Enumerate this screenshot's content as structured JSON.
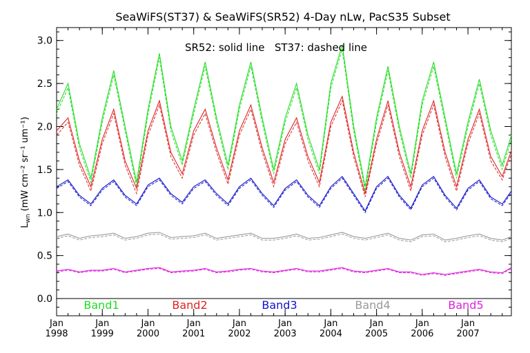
{
  "chart_data": {
    "type": "line",
    "title": "SeaWiFS(ST37) & SeaWiFS(SR52) 4-Day nLw, PacS35 Subset",
    "annotation": "SR52: solid line   ST37: dashed line",
    "ylabel_main": "L",
    "ylabel_sub": "wn",
    "ylabel_units": "(mW cm⁻² sr⁻¹ um⁻¹)",
    "ylim": [
      -0.2,
      3.15
    ],
    "xlim": [
      1998.0,
      2007.95
    ],
    "y_ticks": [
      0.0,
      0.5,
      1.0,
      1.5,
      2.0,
      2.5,
      3.0
    ],
    "y_tick_labels": [
      "0.0",
      "0.5",
      "1.0",
      "1.5",
      "2.0",
      "2.5",
      "3.0"
    ],
    "x_tick_month": "Jan",
    "x_ticks": [
      1998,
      1999,
      2000,
      2001,
      2002,
      2003,
      2004,
      2005,
      2006,
      2007
    ],
    "x_tick_labels": [
      "1998",
      "1999",
      "2000",
      "2001",
      "2002",
      "2003",
      "2004",
      "2005",
      "2006",
      "2007"
    ],
    "legend_placement": "bottom",
    "series": [
      {
        "name": "Band1",
        "color": "#22dd22",
        "x": [
          1998.0,
          1998.25,
          1998.5,
          1998.75,
          1999.0,
          1999.25,
          1999.5,
          1999.75,
          2000.0,
          2000.25,
          2000.5,
          2000.75,
          2001.0,
          2001.25,
          2001.5,
          2001.75,
          2002.0,
          2002.25,
          2002.5,
          2002.75,
          2003.0,
          2003.25,
          2003.5,
          2003.75,
          2004.0,
          2004.25,
          2004.5,
          2004.75,
          2005.0,
          2005.25,
          2005.5,
          2005.75,
          2006.0,
          2006.25,
          2006.5,
          2006.75,
          2007.0,
          2007.25,
          2007.5,
          2007.75,
          2007.95
        ],
        "values": [
          2.2,
          2.5,
          1.8,
          1.4,
          2.1,
          2.65,
          2.0,
          1.35,
          2.2,
          2.85,
          2.0,
          1.6,
          2.2,
          2.75,
          2.1,
          1.55,
          2.25,
          2.75,
          2.1,
          1.5,
          2.1,
          2.5,
          1.9,
          1.5,
          2.5,
          2.95,
          2.0,
          1.3,
          2.1,
          2.7,
          2.0,
          1.45,
          2.3,
          2.75,
          2.1,
          1.45,
          2.05,
          2.55,
          1.95,
          1.55,
          1.9
        ],
        "ST37_values": [
          2.15,
          2.45,
          1.75,
          1.35,
          2.05,
          2.6,
          1.95,
          1.3,
          2.15,
          2.8,
          1.95,
          1.55,
          2.15,
          2.7,
          2.05,
          1.5,
          2.2,
          2.7,
          2.05,
          1.45,
          2.05,
          2.45,
          1.85,
          1.45,
          2.45,
          2.9,
          1.95,
          1.25,
          2.05,
          2.65,
          1.95,
          1.4,
          2.25,
          2.7,
          2.05,
          1.4,
          2.0,
          2.5,
          1.9,
          1.5,
          1.85
        ]
      },
      {
        "name": "Band2",
        "color": "#dd2222",
        "x": [
          1998.0,
          1998.25,
          1998.5,
          1998.75,
          1999.0,
          1999.25,
          1999.5,
          1999.75,
          2000.0,
          2000.25,
          2000.5,
          2000.75,
          2001.0,
          2001.25,
          2001.5,
          2001.75,
          2002.0,
          2002.25,
          2002.5,
          2002.75,
          2003.0,
          2003.25,
          2003.5,
          2003.75,
          2004.0,
          2004.25,
          2004.5,
          2004.75,
          2005.0,
          2005.25,
          2005.5,
          2005.75,
          2006.0,
          2006.25,
          2006.5,
          2006.75,
          2007.0,
          2007.25,
          2007.5,
          2007.75,
          2007.95
        ],
        "values": [
          1.95,
          2.1,
          1.6,
          1.3,
          1.85,
          2.2,
          1.6,
          1.28,
          1.95,
          2.3,
          1.7,
          1.45,
          1.95,
          2.2,
          1.75,
          1.38,
          1.95,
          2.25,
          1.75,
          1.35,
          1.85,
          2.1,
          1.65,
          1.35,
          2.05,
          2.35,
          1.7,
          1.22,
          1.85,
          2.3,
          1.7,
          1.3,
          1.95,
          2.3,
          1.7,
          1.3,
          1.85,
          2.2,
          1.65,
          1.42,
          1.72
        ],
        "ST37_values": [
          1.9,
          2.05,
          1.55,
          1.25,
          1.8,
          2.15,
          1.55,
          1.22,
          1.9,
          2.25,
          1.65,
          1.4,
          1.9,
          2.15,
          1.7,
          1.33,
          1.9,
          2.2,
          1.7,
          1.3,
          1.8,
          2.05,
          1.6,
          1.3,
          2.0,
          2.3,
          1.65,
          1.18,
          1.8,
          2.25,
          1.65,
          1.25,
          1.9,
          2.25,
          1.65,
          1.25,
          1.8,
          2.15,
          1.6,
          1.38,
          1.68
        ]
      },
      {
        "name": "Band3",
        "color": "#1111cc",
        "x": [
          1998.0,
          1998.25,
          1998.5,
          1998.75,
          1999.0,
          1999.25,
          1999.5,
          1999.75,
          2000.0,
          2000.25,
          2000.5,
          2000.75,
          2001.0,
          2001.25,
          2001.5,
          2001.75,
          2002.0,
          2002.25,
          2002.5,
          2002.75,
          2003.0,
          2003.25,
          2003.5,
          2003.75,
          2004.0,
          2004.25,
          2004.5,
          2004.75,
          2005.0,
          2005.25,
          2005.5,
          2005.75,
          2006.0,
          2006.25,
          2006.5,
          2006.75,
          2007.0,
          2007.25,
          2007.5,
          2007.75,
          2007.95
        ],
        "values": [
          1.3,
          1.38,
          1.2,
          1.1,
          1.28,
          1.38,
          1.2,
          1.1,
          1.32,
          1.4,
          1.22,
          1.12,
          1.3,
          1.38,
          1.22,
          1.1,
          1.3,
          1.4,
          1.22,
          1.08,
          1.28,
          1.38,
          1.2,
          1.08,
          1.3,
          1.42,
          1.22,
          1.02,
          1.3,
          1.42,
          1.2,
          1.05,
          1.32,
          1.42,
          1.2,
          1.05,
          1.28,
          1.38,
          1.18,
          1.1,
          1.25
        ],
        "ST37_values": [
          1.28,
          1.36,
          1.18,
          1.08,
          1.26,
          1.36,
          1.18,
          1.08,
          1.3,
          1.38,
          1.2,
          1.1,
          1.28,
          1.36,
          1.2,
          1.08,
          1.28,
          1.38,
          1.2,
          1.06,
          1.26,
          1.36,
          1.18,
          1.06,
          1.28,
          1.4,
          1.2,
          1.0,
          1.28,
          1.4,
          1.18,
          1.03,
          1.3,
          1.4,
          1.18,
          1.03,
          1.26,
          1.36,
          1.16,
          1.08,
          1.23
        ]
      },
      {
        "name": "Band4",
        "color": "#999999",
        "x": [
          1998.0,
          1998.25,
          1998.5,
          1998.75,
          1999.0,
          1999.25,
          1999.5,
          1999.75,
          2000.0,
          2000.25,
          2000.5,
          2000.75,
          2001.0,
          2001.25,
          2001.5,
          2001.75,
          2002.0,
          2002.25,
          2002.5,
          2002.75,
          2003.0,
          2003.25,
          2003.5,
          2003.75,
          2004.0,
          2004.25,
          2004.5,
          2004.75,
          2005.0,
          2005.25,
          2005.5,
          2005.75,
          2006.0,
          2006.25,
          2006.5,
          2006.75,
          2007.0,
          2007.25,
          2007.5,
          2007.75,
          2007.95
        ],
        "values": [
          0.72,
          0.75,
          0.7,
          0.73,
          0.74,
          0.76,
          0.7,
          0.72,
          0.76,
          0.77,
          0.71,
          0.72,
          0.73,
          0.76,
          0.7,
          0.72,
          0.74,
          0.76,
          0.7,
          0.7,
          0.72,
          0.75,
          0.7,
          0.71,
          0.74,
          0.77,
          0.72,
          0.7,
          0.73,
          0.76,
          0.7,
          0.68,
          0.74,
          0.75,
          0.68,
          0.7,
          0.73,
          0.75,
          0.7,
          0.68,
          0.72
        ],
        "ST37_values": [
          0.7,
          0.73,
          0.68,
          0.71,
          0.72,
          0.74,
          0.68,
          0.7,
          0.74,
          0.75,
          0.69,
          0.7,
          0.71,
          0.74,
          0.68,
          0.7,
          0.72,
          0.74,
          0.68,
          0.68,
          0.7,
          0.73,
          0.68,
          0.69,
          0.72,
          0.75,
          0.7,
          0.68,
          0.71,
          0.74,
          0.68,
          0.66,
          0.72,
          0.73,
          0.66,
          0.68,
          0.71,
          0.73,
          0.68,
          0.66,
          0.7
        ]
      },
      {
        "name": "Band5",
        "color": "#dd22dd",
        "x": [
          1998.0,
          1998.25,
          1998.5,
          1998.75,
          1999.0,
          1999.25,
          1999.5,
          1999.75,
          2000.0,
          2000.25,
          2000.5,
          2000.75,
          2001.0,
          2001.25,
          2001.5,
          2001.75,
          2002.0,
          2002.25,
          2002.5,
          2002.75,
          2003.0,
          2003.25,
          2003.5,
          2003.75,
          2004.0,
          2004.25,
          2004.5,
          2004.75,
          2005.0,
          2005.25,
          2005.5,
          2005.75,
          2006.0,
          2006.25,
          2006.5,
          2006.75,
          2007.0,
          2007.25,
          2007.5,
          2007.75,
          2007.95
        ],
        "values": [
          0.32,
          0.34,
          0.31,
          0.33,
          0.33,
          0.35,
          0.31,
          0.33,
          0.35,
          0.36,
          0.31,
          0.32,
          0.33,
          0.35,
          0.31,
          0.32,
          0.34,
          0.35,
          0.32,
          0.31,
          0.33,
          0.35,
          0.32,
          0.32,
          0.34,
          0.36,
          0.32,
          0.31,
          0.33,
          0.35,
          0.31,
          0.31,
          0.28,
          0.3,
          0.28,
          0.3,
          0.32,
          0.34,
          0.31,
          0.3,
          0.36
        ],
        "ST37_values": [
          0.31,
          0.33,
          0.3,
          0.32,
          0.32,
          0.34,
          0.3,
          0.32,
          0.34,
          0.35,
          0.3,
          0.31,
          0.32,
          0.34,
          0.3,
          0.31,
          0.33,
          0.34,
          0.31,
          0.3,
          0.32,
          0.34,
          0.31,
          0.31,
          0.33,
          0.35,
          0.31,
          0.3,
          0.32,
          0.34,
          0.3,
          0.3,
          0.27,
          0.29,
          0.27,
          0.29,
          0.31,
          0.33,
          0.3,
          0.29,
          0.35
        ]
      }
    ]
  }
}
